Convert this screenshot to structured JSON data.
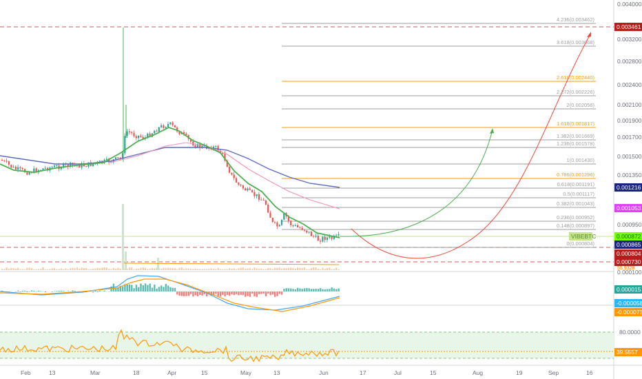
{
  "symbol": "VIBEBTC",
  "price_axis": {
    "ticks": [
      "0.004000",
      "0.003200",
      "0.002800",
      "0.002400",
      "0.002100",
      "0.001900",
      "0.001700",
      "0.001500",
      "0.001350",
      "0.000950",
      "0.000100"
    ],
    "tags": [
      {
        "label": "0.003461",
        "color": "#b71c1c"
      },
      {
        "label": "0.001216",
        "color": "#1a237e"
      },
      {
        "label": "0.001053",
        "color": "#e040fb"
      },
      {
        "label": "0.000872",
        "color": "#76ff03"
      },
      {
        "label": "0.000865",
        "color": "#1a237e"
      },
      {
        "label": "0.000804",
        "color": "#b71c1c"
      },
      {
        "label": "0.000730",
        "color": "#b71c1c"
      }
    ]
  },
  "fib_levels": [
    {
      "label": "4.236(0.003462)",
      "color": "#9e9e9e"
    },
    {
      "label": "3.618(0.003068)",
      "color": "#9e9e9e"
    },
    {
      "label": "2.618(0.002440)",
      "color": "#ff9800"
    },
    {
      "label": "2.272(0.002226)",
      "color": "#9e9e9e"
    },
    {
      "label": "2(0.002056)",
      "color": "#9e9e9e"
    },
    {
      "label": "1.618(0.001817)",
      "color": "#ff9800"
    },
    {
      "label": "1.382(0.001669)",
      "color": "#9e9e9e"
    },
    {
      "label": "1.236(0.001578)",
      "color": "#9e9e9e"
    },
    {
      "label": "1(0.001430)",
      "color": "#9e9e9e"
    },
    {
      "label": "0.786(0.001296)",
      "color": "#ff9800"
    },
    {
      "label": "0.618(0.001191)",
      "color": "#9e9e9e"
    },
    {
      "label": "0.5(0.001117)",
      "color": "#9e9e9e"
    },
    {
      "label": "0.382(0.001043)",
      "color": "#9e9e9e"
    },
    {
      "label": "0.236(0.000952)",
      "color": "#9e9e9e"
    },
    {
      "label": "0.148(0.000897)",
      "color": "#9e9e9e"
    },
    {
      "label": "0(0.000804)",
      "color": "#9e9e9e"
    }
  ],
  "macd_axis": {
    "tags": [
      {
        "label": "0.000015",
        "color": "#26a69a"
      },
      {
        "label": "-0.000058",
        "color": "#29b6f6"
      },
      {
        "label": "-0.000073",
        "color": "#ff9800"
      }
    ]
  },
  "rsi_axis": {
    "ticks": [
      "80.0000"
    ],
    "tags": [
      {
        "label": "39.5557",
        "color": "#ff9800"
      }
    ],
    "overlap_label": "55.9328"
  },
  "time_axis": [
    "Feb",
    "13",
    "Mar",
    "18",
    "Apr",
    "15",
    "May",
    "13",
    "Jun",
    "17",
    "Jul",
    "15",
    "Aug",
    "19",
    "Sep",
    "16"
  ],
  "colors": {
    "up": "#26a69a",
    "down": "#ef5350",
    "ema_fast": "#4caf50",
    "ma_blue": "#5c6bc0",
    "ma_pink": "#f48fb1",
    "projection_green": "#4caf50",
    "projection_red": "#f44336",
    "rsi": "#ff9800"
  }
}
